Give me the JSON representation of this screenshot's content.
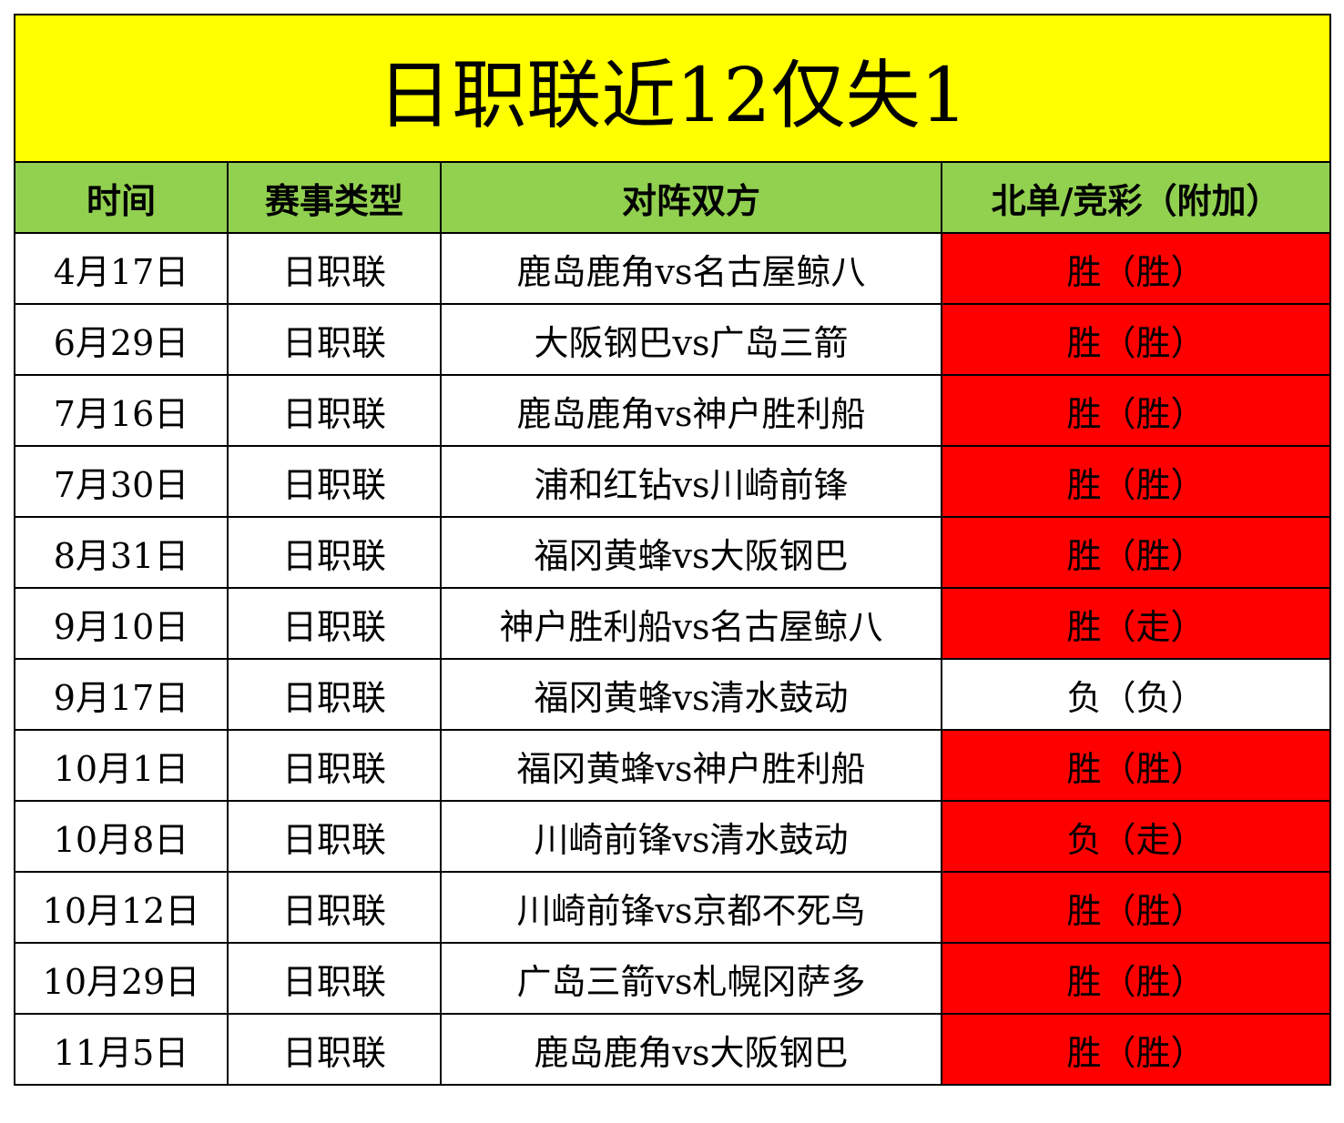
{
  "title": "日职联近12仅失1",
  "headers": [
    "时间",
    "赛事类型",
    "对阵双方",
    "北单/竞彩（附加）"
  ],
  "colors": {
    "title_bg": "#ffff00",
    "header_bg": "#92d050",
    "hit_bg": "#ff0000",
    "miss_bg": "#ffffff"
  },
  "rows": [
    {
      "date": "4月17日",
      "league": "日职联",
      "match": "鹿岛鹿角vs名古屋鲸八",
      "result": "胜（胜）",
      "hit": true
    },
    {
      "date": "6月29日",
      "league": "日职联",
      "match": "大阪钢巴vs广岛三箭",
      "result": "胜（胜）",
      "hit": true
    },
    {
      "date": "7月16日",
      "league": "日职联",
      "match": "鹿岛鹿角vs神户胜利船",
      "result": "胜（胜）",
      "hit": true
    },
    {
      "date": "7月30日",
      "league": "日职联",
      "match": "浦和红钻vs川崎前锋",
      "result": "胜（胜）",
      "hit": true
    },
    {
      "date": "8月31日",
      "league": "日职联",
      "match": "福冈黄蜂vs大阪钢巴",
      "result": "胜（胜）",
      "hit": true
    },
    {
      "date": "9月10日",
      "league": "日职联",
      "match": "神户胜利船vs名古屋鲸八",
      "result": "胜（走）",
      "hit": true
    },
    {
      "date": "9月17日",
      "league": "日职联",
      "match": "福冈黄蜂vs清水鼓动",
      "result": "负（负）",
      "hit": false
    },
    {
      "date": "10月1日",
      "league": "日职联",
      "match": "福冈黄蜂vs神户胜利船",
      "result": "胜（胜）",
      "hit": true
    },
    {
      "date": "10月8日",
      "league": "日职联",
      "match": "川崎前锋vs清水鼓动",
      "result": "负（走）",
      "hit": true
    },
    {
      "date": "10月12日",
      "league": "日职联",
      "match": "川崎前锋vs京都不死鸟",
      "result": "胜（胜）",
      "hit": true
    },
    {
      "date": "10月29日",
      "league": "日职联",
      "match": "广岛三箭vs札幌冈萨多",
      "result": "胜（胜）",
      "hit": true
    },
    {
      "date": "11月5日",
      "league": "日职联",
      "match": "鹿岛鹿角vs大阪钢巴",
      "result": "胜（胜）",
      "hit": true
    }
  ]
}
